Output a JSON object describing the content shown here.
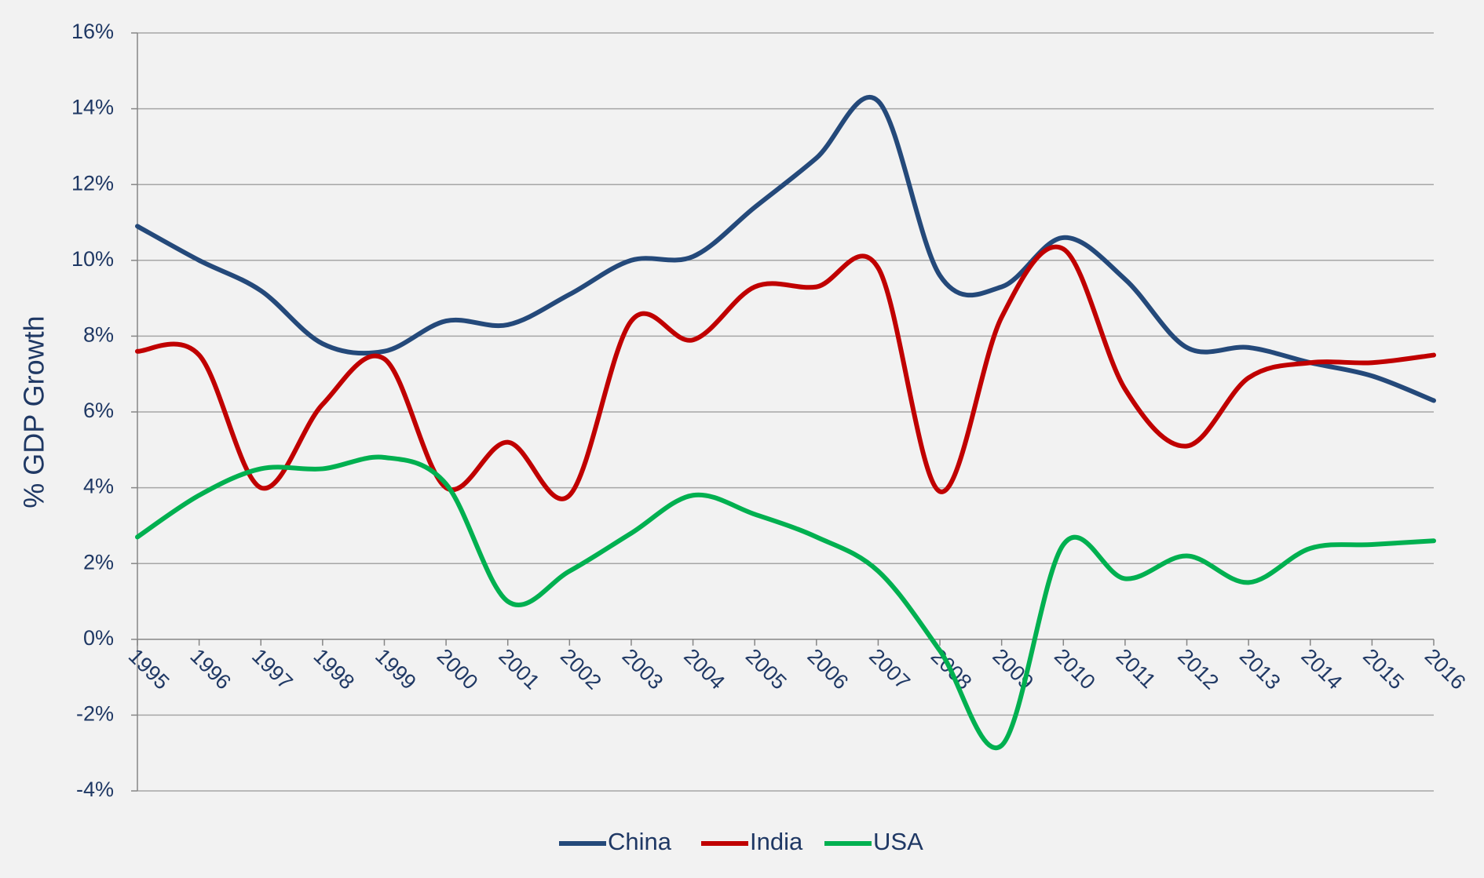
{
  "chart_data": {
    "type": "line",
    "y_label": "% GDP Growth",
    "categories": [
      "1995",
      "1996",
      "1997",
      "1998",
      "1999",
      "2000",
      "2001",
      "2002",
      "2003",
      "2004",
      "2005",
      "2006",
      "2007",
      "2008",
      "2009",
      "2010",
      "2011",
      "2012",
      "2013",
      "2014",
      "2015",
      "2016"
    ],
    "series": [
      {
        "name": "China",
        "color": "#24497a",
        "values": [
          10.9,
          10.0,
          9.2,
          7.8,
          7.6,
          8.4,
          8.3,
          9.1,
          10.0,
          10.1,
          11.4,
          12.7,
          14.2,
          9.6,
          9.3,
          10.6,
          9.5,
          7.7,
          7.7,
          7.3,
          6.95,
          6.3
        ]
      },
      {
        "name": "India",
        "color": "#c00000",
        "values": [
          7.6,
          7.5,
          4.0,
          6.2,
          7.4,
          4.0,
          5.2,
          3.8,
          8.4,
          7.9,
          9.3,
          9.3,
          9.8,
          3.9,
          8.5,
          10.3,
          6.6,
          5.1,
          6.9,
          7.3,
          7.3,
          7.5
        ]
      },
      {
        "name": "USA",
        "color": "#00b050",
        "values": [
          2.7,
          3.8,
          4.5,
          4.5,
          4.8,
          4.1,
          1.0,
          1.8,
          2.8,
          3.8,
          3.3,
          2.7,
          1.8,
          -0.3,
          -2.8,
          2.5,
          1.6,
          2.2,
          1.5,
          2.4,
          2.5,
          2.6
        ]
      }
    ],
    "ylim": [
      -4,
      16
    ],
    "yticks": [
      {
        "value": -4,
        "label": "-4%"
      },
      {
        "value": -2,
        "label": "-2%"
      },
      {
        "value": 0,
        "label": "0%"
      },
      {
        "value": 2,
        "label": "2%"
      },
      {
        "value": 4,
        "label": "4%"
      },
      {
        "value": 6,
        "label": "6%"
      },
      {
        "value": 8,
        "label": "8%"
      },
      {
        "value": 10,
        "label": "10%"
      },
      {
        "value": 12,
        "label": "12%"
      },
      {
        "value": 14,
        "label": "14%"
      },
      {
        "value": 16,
        "label": "16%"
      }
    ],
    "grid": true,
    "legend": "bottom"
  }
}
